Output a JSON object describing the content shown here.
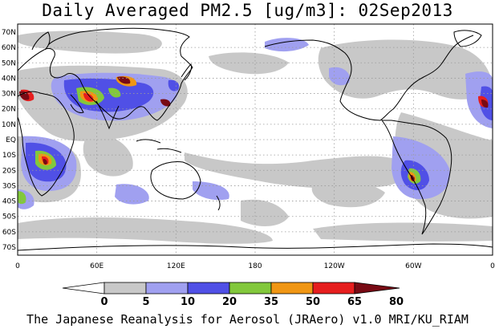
{
  "title": "Daily Averaged PM2.5 [ug/m3]: 02Sep2013",
  "footer": "The Japanese Reanalysis for Aerosol (JRAero) v1.0 MRI/KU_RIAM",
  "axes": {
    "lat_labels": [
      "70N",
      "60N",
      "50N",
      "40N",
      "30N",
      "20N",
      "10N",
      "EQ",
      "10S",
      "20S",
      "30S",
      "40S",
      "50S",
      "60S",
      "70S"
    ],
    "lon_labels": [
      "0",
      "60E",
      "120E",
      "180",
      "120W",
      "60W",
      "0"
    ]
  },
  "colorbar": {
    "labels": [
      "0",
      "5",
      "10",
      "20",
      "35",
      "50",
      "65",
      "80"
    ],
    "colors": [
      "#ffffff",
      "#c8c8c8",
      "#a0a0f0",
      "#5050e6",
      "#82c83c",
      "#f09614",
      "#e61e1e",
      "#780a14"
    ]
  },
  "colors": {
    "land_outline": "#000000",
    "grid": "#9a9a9a"
  }
}
